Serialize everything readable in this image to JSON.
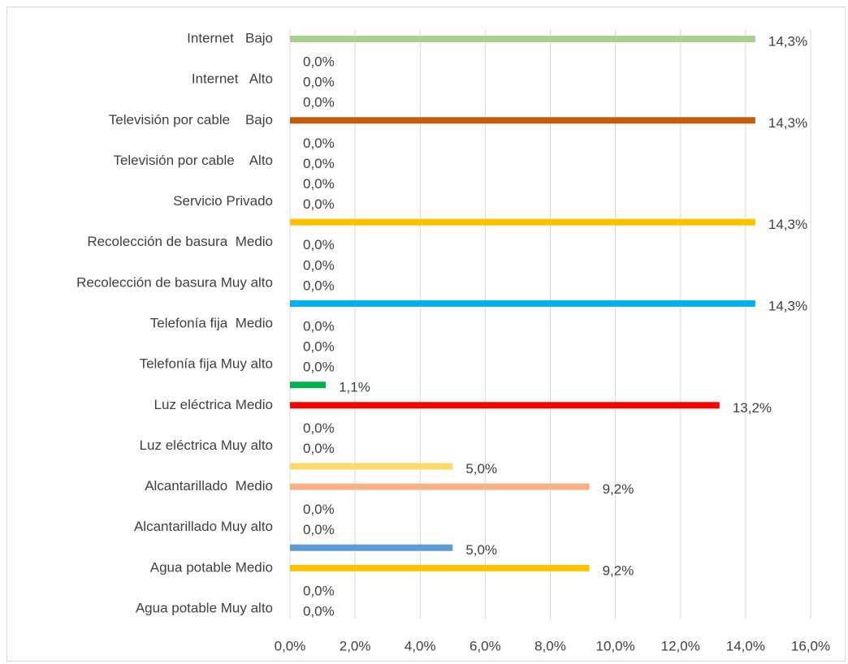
{
  "chart_data": {
    "type": "bar",
    "orientation": "horizontal",
    "categories": [
      "Internet   Bajo",
      null,
      "Internet   Alto",
      null,
      "Televisión por cable    Bajo",
      null,
      "Televisión por cable    Alto",
      null,
      "Servicio Privado",
      null,
      "Recolección de basura  Medio",
      null,
      "Recolección de basura Muy alto",
      null,
      "Telefonía fija  Medio",
      null,
      "Telefonía fija Muy alto",
      null,
      "Luz eléctrica Medio",
      null,
      "Luz eléctrica Muy alto",
      null,
      "Alcantarillado  Medio",
      null,
      "Alcantarillado Muy alto",
      null,
      "Agua potable Medio",
      null,
      "Agua potable Muy alto"
    ],
    "values": [
      14.3,
      0,
      0,
      0,
      14.3,
      0,
      0,
      0,
      0,
      14.3,
      0,
      0,
      0,
      14.3,
      0,
      0,
      0,
      1.1,
      13.2,
      0,
      0,
      5.0,
      9.2,
      0,
      0,
      5.0,
      9.2,
      0,
      0
    ],
    "value_labels": [
      "14,3%",
      "0,0%",
      "0,0%",
      "0,0%",
      "14,3%",
      "0,0%",
      "0,0%",
      "0,0%",
      "0,0%",
      "14,3%",
      "0,0%",
      "0,0%",
      "0,0%",
      "14,3%",
      "0,0%",
      "0,0%",
      "0,0%",
      "1,1%",
      "13,2%",
      "0,0%",
      "0,0%",
      "5,0%",
      "9,2%",
      "0,0%",
      "0,0%",
      "5,0%",
      "9,2%",
      "0,0%",
      "0,0%"
    ],
    "colors": [
      "#a9d18e",
      null,
      null,
      null,
      "#c55a11",
      null,
      null,
      null,
      null,
      "#ffc000",
      null,
      null,
      null,
      "#00b0f0",
      null,
      null,
      null,
      "#00b050",
      "#ff0000",
      null,
      null,
      "#ffd966",
      "#f4b183",
      null,
      null,
      "#5b9bd5",
      "#ffc000",
      null,
      null
    ],
    "xlim": [
      0,
      16
    ],
    "xticks": [
      {
        "value": 0,
        "label": "0,0%"
      },
      {
        "value": 2,
        "label": "2,0%"
      },
      {
        "value": 4,
        "label": "4,0%"
      },
      {
        "value": 6,
        "label": "6,0%"
      },
      {
        "value": 8,
        "label": "8,0%"
      },
      {
        "value": 10,
        "label": "10,0%"
      },
      {
        "value": 12,
        "label": "12,0%"
      },
      {
        "value": 14,
        "label": "14,0%"
      },
      {
        "value": 16,
        "label": "16,0%"
      }
    ],
    "grid": true
  }
}
